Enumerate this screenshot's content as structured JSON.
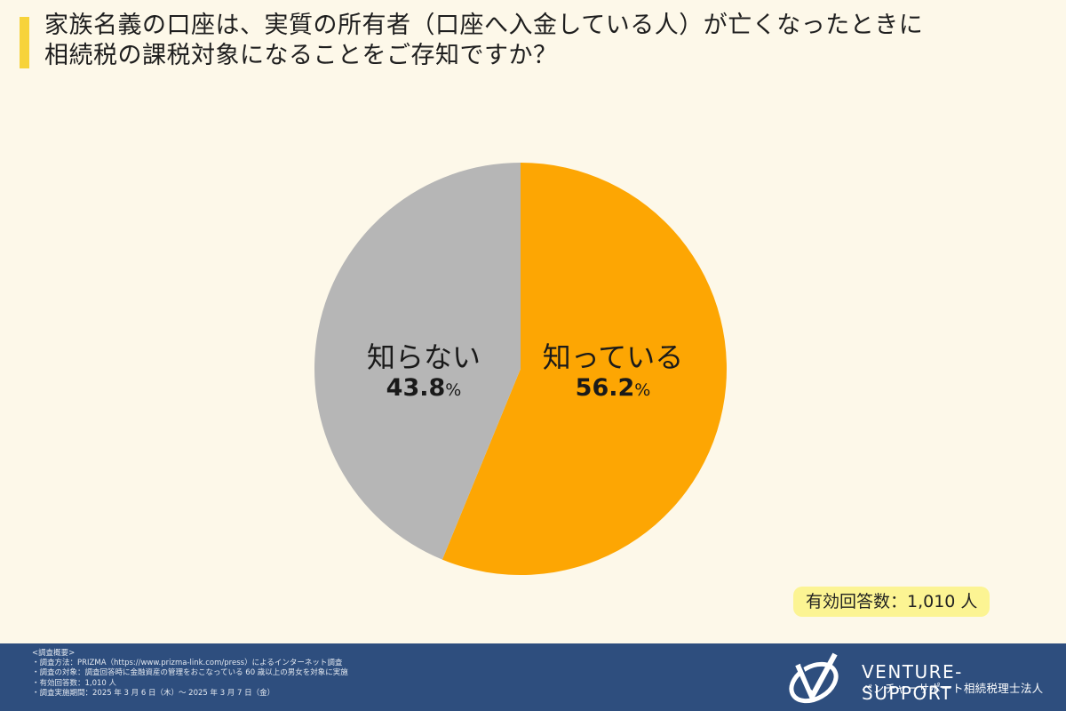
{
  "title": {
    "line1": "家族名義の口座は、実質の所有者（口座へ入金している人）が亡くなったときに",
    "line2": "相続税の課税対象になることをご存知ですか？",
    "accent_color": "#f7d33a"
  },
  "chart_data": {
    "type": "pie",
    "title": "家族名義の口座は、実質の所有者（口座へ入金している人）が亡くなったときに相続税の課税対象になることをご存知ですか？",
    "categories": [
      "知っている",
      "知らない"
    ],
    "values": [
      56.2,
      43.8
    ],
    "unit": "%",
    "colors": [
      "#fda603",
      "#b6b6b6"
    ],
    "start_angle": "12 o'clock, clockwise",
    "legend": "none (labels inside slices)",
    "n": 1010
  },
  "slices": [
    {
      "label": "知っている",
      "value": "56.2",
      "unit": "%"
    },
    {
      "label": "知らない",
      "value": "43.8",
      "unit": "%"
    }
  ],
  "respondents_badge": "有効回答数：1,010 人",
  "footer": {
    "notes": [
      "<調査概要>",
      "・調査方法：PRIZMA（https://www.prizma-link.com/press）によるインターネット調査",
      "・調査の対象：調査回答時に金融資産の管理をおこなっている 60 歳以上の男女を対象に実施",
      "・有効回答数：1,010 人",
      "・調査実施期間：2025 年 3 月 6 日（木）～ 2025 年 3 月 7 日（金）"
    ],
    "brand_en": "VENTURE-SUPPORT",
    "brand_jp": "ベンチャーサポート相続税理士法人",
    "background": "#2e4e7e"
  }
}
